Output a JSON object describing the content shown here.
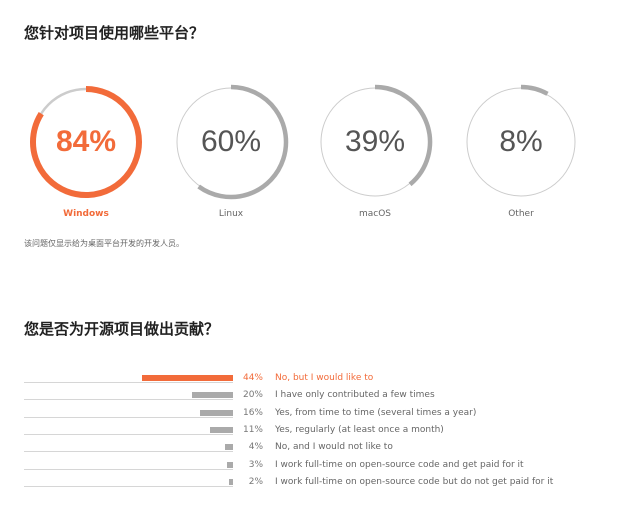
{
  "colors": {
    "accent": "#f26b3a",
    "muted": "#aaaaaa",
    "track": "#cccccc"
  },
  "section_platforms": {
    "title": "您针对项目使用哪些平台？",
    "note": "该问题仅显示给为桌面平台开发的开发人员。"
  },
  "section_opensource": {
    "title": "您是否为开源项目做出贡献？"
  },
  "chart_data": [
    {
      "type": "donut",
      "title": "您针对项目使用哪些平台？",
      "categories": [
        "Windows",
        "Linux",
        "macOS",
        "Other"
      ],
      "values": [
        84,
        60,
        39,
        8
      ],
      "value_labels": [
        "84%",
        "60%",
        "39%",
        "8%"
      ],
      "unit": "%",
      "highlight_index": 0
    },
    {
      "type": "bar",
      "orientation": "horizontal",
      "title": "您是否为开源项目做出贡献？",
      "categories": [
        "No, but I would like to",
        "I have only contributed a few times",
        "Yes, from time to time (several times a year)",
        "Yes, regularly (at least once a month)",
        "No, and I would not like to",
        "I work full-time on open-source code and get paid for it",
        "I work full-time on open-source code but do not get paid for it"
      ],
      "values": [
        44,
        20,
        16,
        11,
        4,
        3,
        2
      ],
      "value_labels": [
        "44%",
        "20%",
        "16%",
        "11%",
        "4%",
        "3%",
        "2%"
      ],
      "unit": "%",
      "xlim": [
        0,
        100
      ],
      "highlight_index": 0
    }
  ]
}
